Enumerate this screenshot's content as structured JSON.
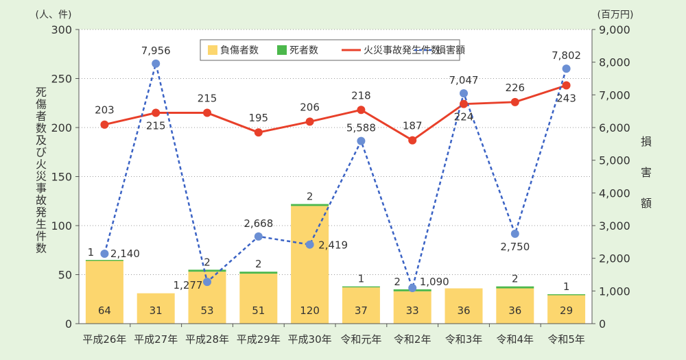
{
  "chart_data": {
    "type": "bar+line",
    "left_unit": "(人、件)",
    "right_unit": "(百万円)",
    "ylabel_left": "死傷者数及び火災事故発生件数",
    "ylabel_right": "損害額",
    "ylim_left": [
      0,
      300
    ],
    "ylim_right": [
      0,
      9000
    ],
    "yticks_left": [
      "0",
      "50",
      "100",
      "150",
      "200",
      "250",
      "300"
    ],
    "yticks_right": [
      "0",
      "1,000",
      "2,000",
      "3,000",
      "4,000",
      "5,000",
      "6,000",
      "7,000",
      "8,000",
      "9,000"
    ],
    "categories": [
      "平成26年",
      "平成27年",
      "平成28年",
      "平成29年",
      "平成30年",
      "令和元年",
      "令和2年",
      "令和3年",
      "令和4年",
      "令和5年"
    ],
    "grid": true,
    "legend_position": "top-center",
    "series": [
      {
        "name": "負傷者数",
        "type": "bar-stacked",
        "axis": "left",
        "color": "#fcd66e",
        "values": [
          64,
          31,
          53,
          51,
          120,
          37,
          33,
          36,
          36,
          29
        ],
        "labels": [
          "64",
          "31",
          "53",
          "51",
          "120",
          "37",
          "33",
          "36",
          "36",
          "29"
        ]
      },
      {
        "name": "死者数",
        "type": "bar-stacked",
        "axis": "left",
        "color": "#4cb84c",
        "values": [
          1,
          0,
          2,
          2,
          2,
          1,
          2,
          0,
          2,
          1
        ],
        "labels": [
          "1",
          "",
          "2",
          "2",
          "2",
          "1",
          "2",
          "",
          "2",
          "1"
        ]
      },
      {
        "name": "火災事故発生件数",
        "type": "line",
        "axis": "left",
        "color": "#e8402a",
        "values": [
          203,
          215,
          215,
          195,
          206,
          218,
          187,
          224,
          226,
          243
        ],
        "labels": [
          "203",
          "215",
          "215",
          "195",
          "206",
          "218",
          "187",
          "224",
          "226",
          "243"
        ]
      },
      {
        "name": "損害額",
        "type": "line-dashed",
        "axis": "right",
        "color": "#3a62c4",
        "values": [
          2140,
          7956,
          1277,
          2668,
          2419,
          5588,
          1090,
          7047,
          2750,
          7802
        ],
        "labels": [
          "2,140",
          "7,956",
          "1,277",
          "2,668",
          "2,419",
          "5,588",
          "1,090",
          "7,047",
          "2,750",
          "7,802"
        ]
      }
    ]
  }
}
